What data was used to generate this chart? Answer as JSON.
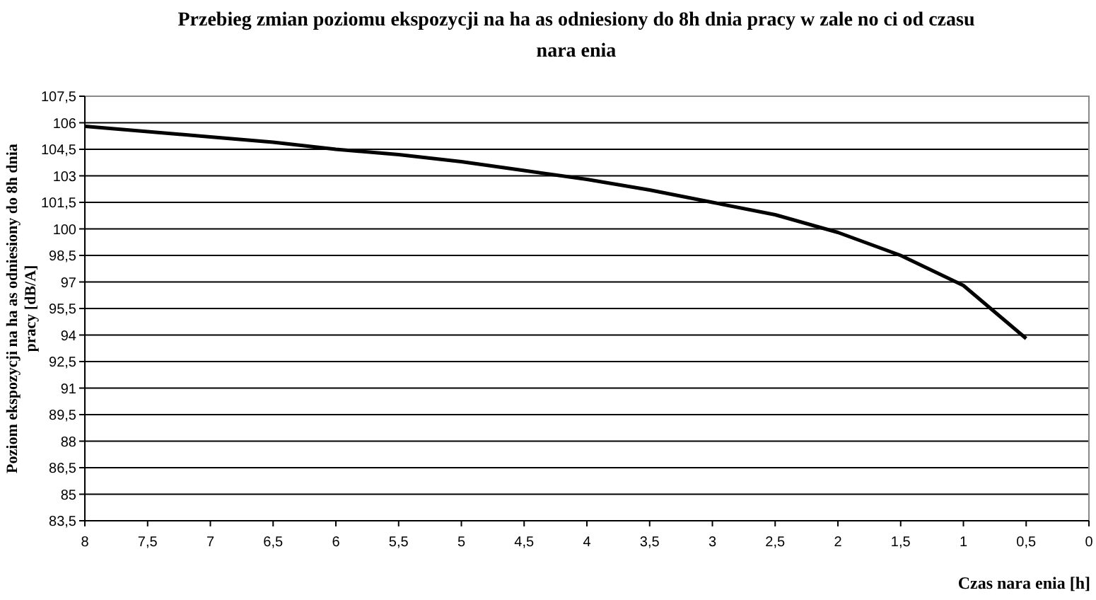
{
  "chart_data": {
    "type": "line",
    "title": "Przebieg zmian poziomu ekspozycji na ha as odniesiony do 8h dnia pracy w zale  no  ci od czasu nara  enia",
    "xlabel": "Czas nara  enia [h]",
    "ylabel": "Poziom ekspozycji na ha  as odniesiony do 8h dnia pracy [dB/A]",
    "x": [
      8,
      7.5,
      7,
      6.5,
      6,
      5.5,
      5,
      4.5,
      4,
      3.5,
      3,
      2.5,
      2,
      1.5,
      1,
      0.5
    ],
    "series": [
      {
        "color": "#000000",
        "values": [
          105.8,
          105.5,
          105.2,
          104.9,
          104.5,
          104.2,
          103.8,
          103.3,
          102.8,
          102.2,
          101.5,
          100.8,
          99.8,
          98.5,
          96.8,
          93.8
        ]
      }
    ],
    "xlim": [
      8,
      0
    ],
    "xticks": [
      8,
      {
        "value": 7.5,
        "label": "7,5"
      },
      7,
      {
        "value": 6.5,
        "label": "6,5"
      },
      6,
      {
        "value": 5.5,
        "label": "5,5"
      },
      5,
      {
        "value": 4.5,
        "label": "4,5"
      },
      4,
      {
        "value": 3.5,
        "label": "3,5"
      },
      3,
      {
        "value": 2.5,
        "label": "2,5"
      },
      2,
      {
        "value": 1.5,
        "label": "1,5"
      },
      1,
      {
        "value": 0.5,
        "label": "0,5"
      },
      0
    ],
    "ylim": [
      83.5,
      107.5
    ],
    "yticks": [
      {
        "value": 83.5,
        "label": "83,5"
      },
      85,
      {
        "value": 86.5,
        "label": "86,5"
      },
      88,
      {
        "value": 89.5,
        "label": "89,5"
      },
      91,
      {
        "value": 92.5,
        "label": "92,5"
      },
      94,
      {
        "value": 95.5,
        "label": "95,5"
      },
      97,
      {
        "value": 98.5,
        "label": "98,5"
      },
      100,
      {
        "value": 101.5,
        "label": "101,5"
      },
      103,
      {
        "value": 104.5,
        "label": "104,5"
      },
      106,
      {
        "value": 107.5,
        "label": "107,5"
      }
    ],
    "grid": "y",
    "marker": "none",
    "line_style": "solid"
  }
}
